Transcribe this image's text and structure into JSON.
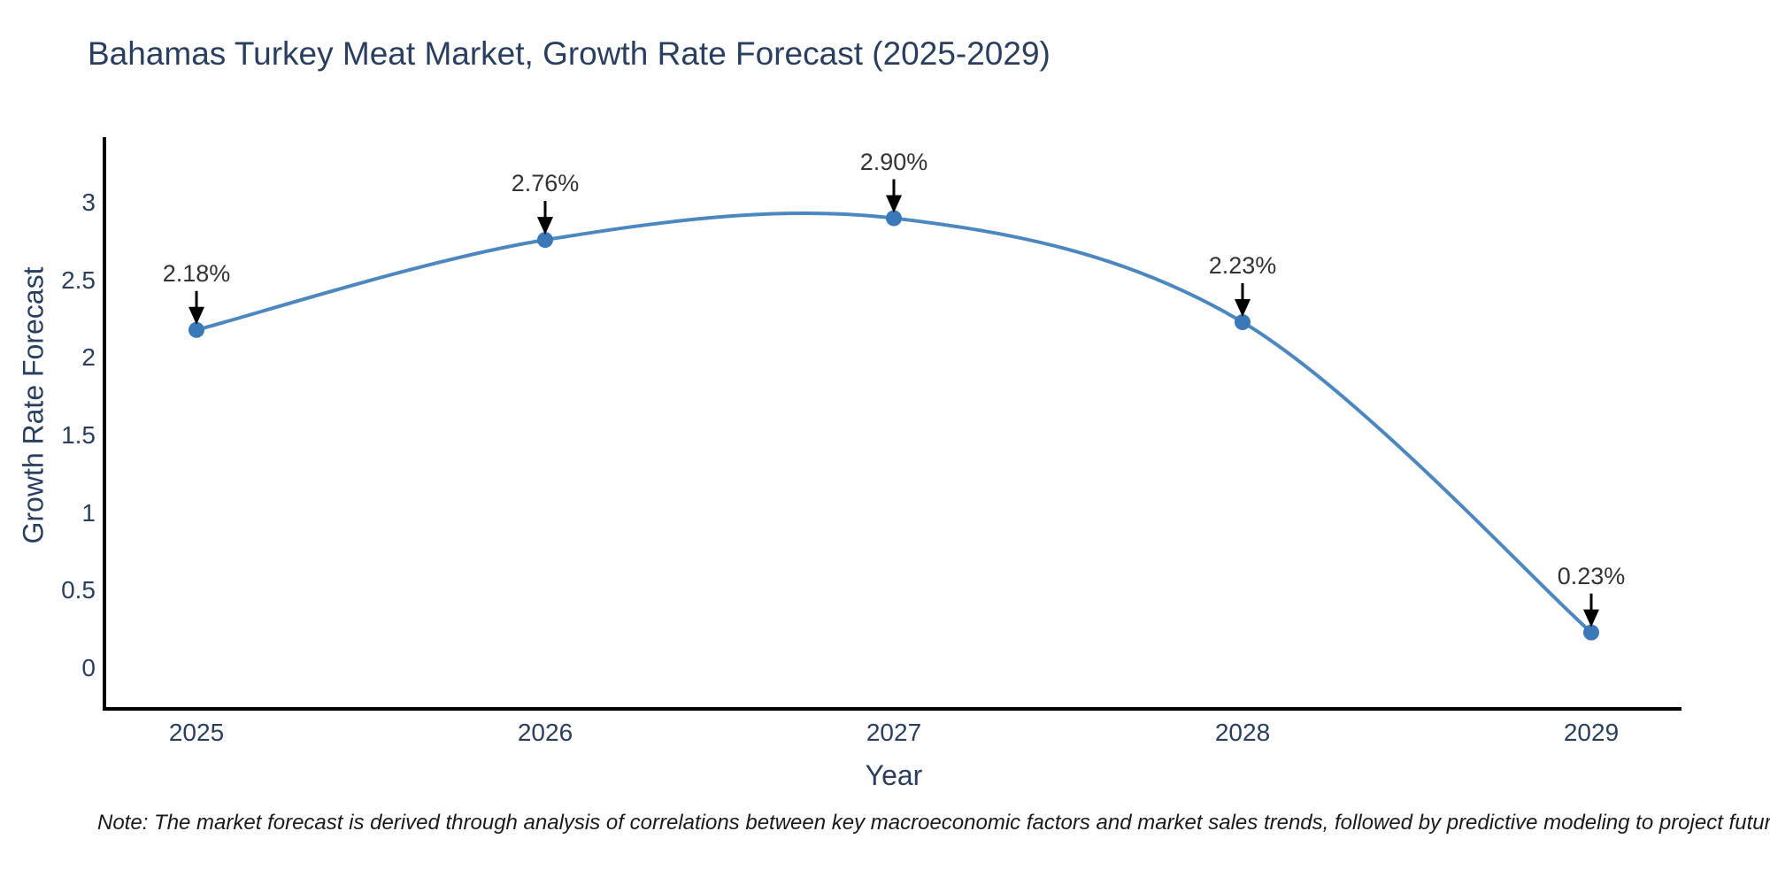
{
  "chart_data": {
    "type": "line",
    "title": "Bahamas Turkey Meat Market, Growth Rate Forecast (2025-2029)",
    "xlabel": "Year",
    "ylabel": "Growth Rate Forecast",
    "categories": [
      "2025",
      "2026",
      "2027",
      "2028",
      "2029"
    ],
    "series": [
      {
        "name": "Growth Rate Forecast",
        "values": [
          2.18,
          2.76,
          2.9,
          2.23,
          0.23
        ]
      }
    ],
    "point_labels": [
      "2.18%",
      "2.76%",
      "2.90%",
      "2.23%",
      "0.23%"
    ],
    "ytick_labels": [
      "0",
      "0.5",
      "1",
      "1.5",
      "2",
      "2.5",
      "3"
    ],
    "ytick_values": [
      0,
      0.5,
      1,
      1.5,
      2,
      2.5,
      3
    ],
    "ylim": [
      -0.27,
      3.42
    ],
    "grid": false,
    "legend": "none",
    "curve": "smooth-spline",
    "line_color": "#4c87bf",
    "marker_color": "#3a78b8",
    "annotation_color": "#333333",
    "arrow_color": "#000000",
    "axis_line_color": "#000000",
    "text_color": "#2a3f5f",
    "note": "Note: The market forecast is derived through analysis of correlations between key macroeconomic factors and market sales trends, followed by predictive modeling to project future sales"
  }
}
